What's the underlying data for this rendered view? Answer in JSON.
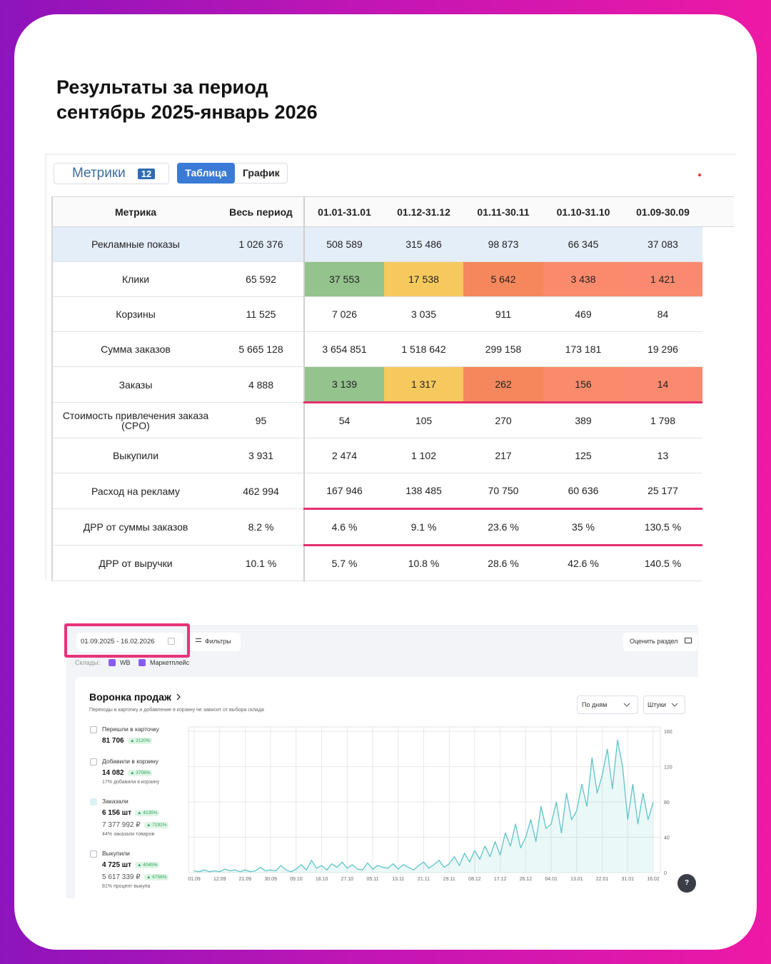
{
  "header": {
    "title": [
      "Результаты за период",
      "сентябрь 2025-январь 2026"
    ]
  },
  "metrics_panel": {
    "tab": "Метрики",
    "badge": "12",
    "views": [
      "Таблица",
      "График"
    ]
  },
  "table": {
    "columns": [
      "Метрика",
      "Весь период",
      "01.01-31.01",
      "01.12-31.12",
      "01.11-30.11",
      "01.10-31.10",
      "01.09-30.09"
    ],
    "rows": [
      [
        "Рекламные показы",
        "1 026 376",
        "508 589",
        "315 486",
        "98 873",
        "66 345",
        "37 083"
      ],
      [
        "Клики",
        "65 592",
        "37 553",
        "17 538",
        "5 642",
        "3 438",
        "1 421"
      ],
      [
        "Корзины",
        "11 525",
        "7 026",
        "3 035",
        "911",
        "469",
        "84"
      ],
      [
        "Сумма заказов",
        "5 665 128",
        "3 654 851",
        "1 518 642",
        "299 158",
        "173 181",
        "19 296"
      ],
      [
        "Заказы",
        "4 888",
        "3 139",
        "1 317",
        "262",
        "156",
        "14"
      ],
      [
        "Стоимость привлечения заказа (CPO)",
        "95",
        "54",
        "105",
        "270",
        "389",
        "1 798"
      ],
      [
        "Выкупили",
        "3 931",
        "2 474",
        "1 102",
        "217",
        "125",
        "13"
      ],
      [
        "Расход на рекламу",
        "462 994",
        "167 946",
        "138 485",
        "70 750",
        "60 636",
        "25 177"
      ],
      [
        "ДРР от суммы заказов",
        "8.2 %",
        "4.6 %",
        "9.1 %",
        "23.6 %",
        "35 %",
        "130.5 %"
      ],
      [
        "ДРР от выручки",
        "10.1 %",
        "5.7 %",
        "10.8 %",
        "28.6 %",
        "42.6 %",
        "140.5 %"
      ]
    ],
    "highlighted_row": 0,
    "highlight_color": "#e4eef9",
    "heat_rows": [
      1,
      4
    ],
    "heat_colors": [
      "#94c38d",
      "#f6c95e",
      "#f5875c",
      "#f98a6c",
      "#f98a70"
    ],
    "underlined_rows": [
      4,
      7,
      8
    ],
    "underline_color": "#e4306e"
  },
  "dashboard": {
    "period": "01.09.2025 - 16.02.2026",
    "filters": "Фильтры",
    "rate": "Оценить раздел",
    "warehouses": {
      "label": "Склады:",
      "options": [
        "WB",
        "Маркетплейс"
      ]
    },
    "funnel": {
      "title": "Воронка продаж",
      "subtitle": "Переходы в карточку и добавление в корзину не зависит от выбора склада",
      "group_by": "По дням",
      "unit": "Штуки",
      "items": [
        {
          "label": "Перешли в карточку",
          "value": "81 706",
          "change": "▲ 2120%"
        },
        {
          "label": "Добавили в корзину",
          "value": "14 082",
          "change": "▲ 3706%",
          "note": "17% добавили в корзину"
        },
        {
          "value": "6 156 шт",
          "change": "▲ 4235%",
          "amount": "7 377 992 ₽",
          "amount_change": "▲ 7191%",
          "note": "44% заказали товаров"
        },
        {
          "label": "Выкупили",
          "value": "4 725 шт",
          "change": "▲ 4045%",
          "amount": "5 617 339 ₽",
          "amount_change": "▲ 6756%",
          "note": "81% процент выкупа"
        }
      ]
    },
    "help": "?"
  },
  "chart_data": {
    "type": "line",
    "categories": [
      "01.09",
      null,
      null,
      null,
      null,
      "12.09",
      null,
      null,
      null,
      null,
      "21.09",
      null,
      null,
      null,
      null,
      "30.09",
      null,
      null,
      null,
      null,
      "09.10",
      null,
      null,
      null,
      null,
      "18.10",
      null,
      null,
      null,
      null,
      "27.10",
      null,
      null,
      null,
      null,
      "05.11",
      null,
      null,
      null,
      null,
      "13.11",
      null,
      null,
      null,
      null,
      "21.11",
      null,
      null,
      null,
      null,
      "29.11",
      null,
      null,
      null,
      null,
      "08.12",
      null,
      null,
      null,
      null,
      "17.12",
      null,
      null,
      null,
      null,
      "26.12",
      null,
      null,
      null,
      null,
      "04.01",
      null,
      null,
      null,
      null,
      "13.01",
      null,
      null,
      null,
      null,
      "22.01",
      null,
      null,
      null,
      null,
      "31.01",
      null,
      null,
      null,
      null,
      "16.02"
    ],
    "series": [
      {
        "name": "Заказали",
        "color": "#5ec4c8",
        "values": [
          2,
          1,
          3,
          1,
          2,
          1,
          4,
          2,
          3,
          1,
          3,
          1,
          2,
          6,
          2,
          3,
          2,
          8,
          3,
          1,
          4,
          9,
          3,
          14,
          5,
          8,
          3,
          10,
          6,
          12,
          5,
          9,
          4,
          3,
          11,
          4,
          8,
          6,
          5,
          10,
          4,
          9,
          6,
          3,
          8,
          12,
          5,
          9,
          14,
          6,
          10,
          18,
          8,
          22,
          12,
          25,
          15,
          30,
          18,
          35,
          20,
          45,
          30,
          55,
          28,
          40,
          60,
          35,
          75,
          50,
          55,
          80,
          45,
          90,
          60,
          70,
          100,
          75,
          130,
          90,
          110,
          140,
          95,
          150,
          120,
          60,
          100,
          55,
          90,
          60,
          80
        ]
      }
    ],
    "ylim": [
      0,
      165
    ],
    "yticks": [
      0,
      40,
      80,
      120,
      160
    ],
    "grid": true
  }
}
